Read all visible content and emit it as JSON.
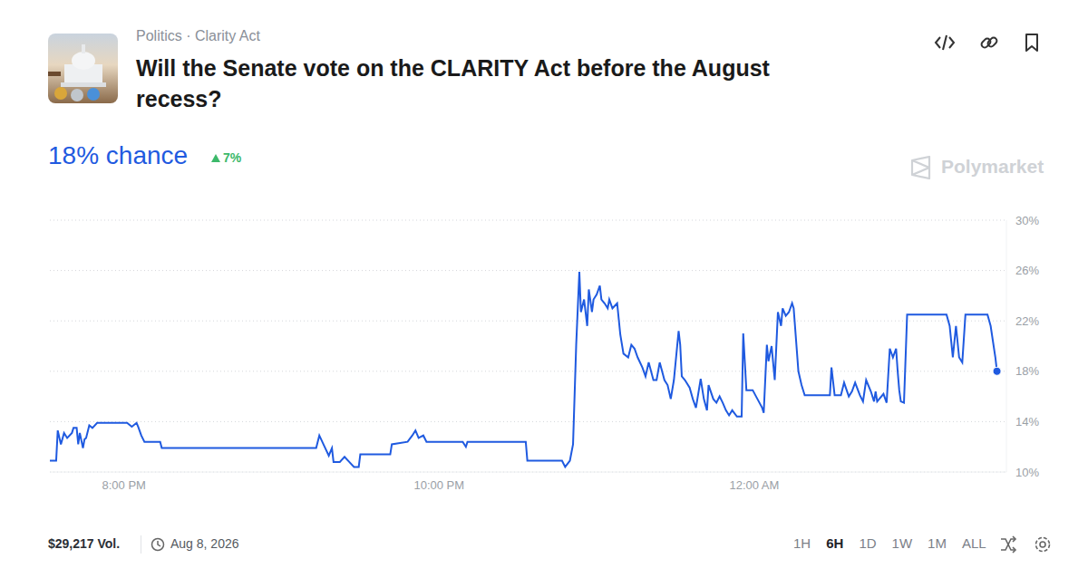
{
  "chart_data": {
    "type": "line",
    "breadcrumb": "Politics · Clarity Act",
    "title": "Will the Senate vote on the CLARITY Act before the August recess?",
    "current_label": "18% chance",
    "change_label": "7%",
    "source": "Polymarket",
    "volume": "$29,217 Vol.",
    "date": "Aug 8, 2026",
    "range_buttons": [
      "1H",
      "6H",
      "1D",
      "1W",
      "1M",
      "ALL"
    ],
    "selected_range": "6H",
    "color": "#1f5ae0",
    "marker": "last",
    "grid": true,
    "x": [
      19.53,
      19.57,
      19.58,
      19.6,
      19.62,
      19.64,
      19.67,
      19.68,
      19.7,
      19.71,
      19.72,
      19.74,
      19.75,
      19.76,
      19.78,
      19.8,
      19.83,
      20.02,
      20.05,
      20.08,
      20.09,
      20.11,
      20.13,
      20.23,
      20.24,
      21.14,
      21.22,
      21.24,
      21.27,
      21.3,
      21.32,
      21.33,
      21.37,
      21.4,
      21.43,
      21.46,
      21.49,
      21.5,
      21.69,
      21.7,
      21.8,
      21.83,
      21.85,
      21.87,
      21.9,
      21.92,
      22.15,
      22.17,
      22.18,
      22.55,
      22.56,
      22.78,
      22.8,
      22.83,
      22.85,
      22.87,
      22.89,
      22.9,
      22.92,
      22.94,
      22.95,
      22.97,
      22.98,
      23.0,
      23.02,
      23.03,
      23.05,
      23.07,
      23.08,
      23.1,
      23.13,
      23.15,
      23.17,
      23.2,
      23.22,
      23.24,
      23.26,
      23.29,
      23.31,
      23.33,
      23.36,
      23.38,
      23.4,
      23.43,
      23.45,
      23.47,
      23.49,
      23.52,
      23.53,
      23.54,
      23.56,
      23.59,
      23.61,
      23.63,
      23.66,
      23.68,
      23.7,
      23.71,
      23.74,
      23.76,
      23.78,
      23.8,
      23.82,
      23.84,
      23.86,
      23.89,
      23.92,
      23.93,
      23.95,
      23.97,
      23.99,
      24.02,
      24.05,
      24.06,
      24.08,
      24.09,
      24.11,
      24.13,
      24.15,
      24.17,
      24.18,
      24.2,
      24.22,
      24.24,
      24.25,
      24.28,
      24.3,
      24.32,
      24.48,
      24.49,
      24.51,
      24.55,
      24.57,
      24.6,
      24.62,
      24.64,
      24.67,
      24.69,
      24.71,
      24.74,
      24.76,
      24.77,
      24.78,
      24.82,
      24.84,
      24.86,
      24.88,
      24.9,
      24.91,
      24.92,
      24.93,
      24.95,
      24.97,
      25.22,
      25.24,
      25.26,
      25.28,
      25.3,
      25.32,
      25.34,
      25.48,
      25.5,
      25.53,
      25.54
    ],
    "values": [
      10.9,
      10.9,
      13.3,
      12.2,
      13.1,
      12.7,
      13.1,
      13.5,
      13.5,
      12.2,
      13.1,
      11.9,
      12.6,
      12.7,
      13.7,
      13.5,
      13.9,
      13.9,
      13.6,
      13.9,
      13.6,
      12.9,
      12.4,
      12.4,
      11.9,
      11.9,
      11.9,
      12.9,
      12.1,
      11.3,
      11.9,
      10.8,
      10.8,
      11.2,
      10.8,
      10.4,
      10.4,
      11.4,
      11.4,
      12.2,
      12.4,
      12.9,
      13.3,
      12.7,
      12.9,
      12.4,
      12.4,
      12.0,
      12.4,
      12.4,
      10.9,
      10.9,
      10.4,
      10.9,
      12.2,
      20.1,
      25.9,
      22.7,
      23.7,
      21.6,
      24.5,
      22.7,
      23.7,
      24.1,
      24.8,
      23.7,
      23.4,
      23.0,
      23.7,
      23.0,
      23.4,
      20.9,
      19.4,
      19.1,
      20.1,
      19.8,
      19.1,
      18.3,
      17.6,
      18.7,
      17.3,
      17.3,
      18.7,
      17.3,
      16.9,
      15.8,
      17.3,
      21.2,
      20.1,
      17.6,
      17.3,
      16.7,
      15.8,
      15.1,
      17.4,
      15.8,
      14.9,
      16.9,
      15.8,
      15.5,
      16.0,
      15.5,
      14.9,
      14.5,
      14.9,
      14.4,
      14.4,
      21.0,
      16.5,
      16.5,
      16.5,
      15.8,
      15.1,
      14.7,
      20.1,
      18.8,
      20.0,
      17.3,
      22.7,
      21.6,
      23.0,
      22.4,
      22.7,
      23.4,
      23.0,
      18.0,
      16.9,
      16.1,
      16.1,
      18.3,
      16.1,
      16.1,
      17.1,
      16.0,
      16.4,
      17.1,
      16.1,
      15.6,
      17.3,
      16.4,
      15.6,
      16.4,
      15.6,
      16.2,
      15.5,
      19.8,
      19.1,
      19.8,
      18.0,
      16.5,
      15.6,
      15.5,
      22.5,
      22.5,
      21.6,
      19.1,
      21.6,
      19.1,
      18.7,
      22.5,
      22.5,
      21.6,
      19.1,
      18.0
    ],
    "xlim": [
      19.53,
      25.6
    ],
    "xticks": [
      {
        "value": 20,
        "label": "8:00 PM"
      },
      {
        "value": 22,
        "label": "10:00 PM"
      },
      {
        "value": 24,
        "label": "12:00 AM"
      }
    ],
    "ylim": [
      10,
      30
    ],
    "yticks": [
      {
        "value": 10,
        "label": "10%"
      },
      {
        "value": 14,
        "label": "14%"
      },
      {
        "value": 18,
        "label": "18%"
      },
      {
        "value": 22,
        "label": "22%"
      },
      {
        "value": 26,
        "label": "26%"
      },
      {
        "value": 30,
        "label": "30%"
      }
    ]
  }
}
